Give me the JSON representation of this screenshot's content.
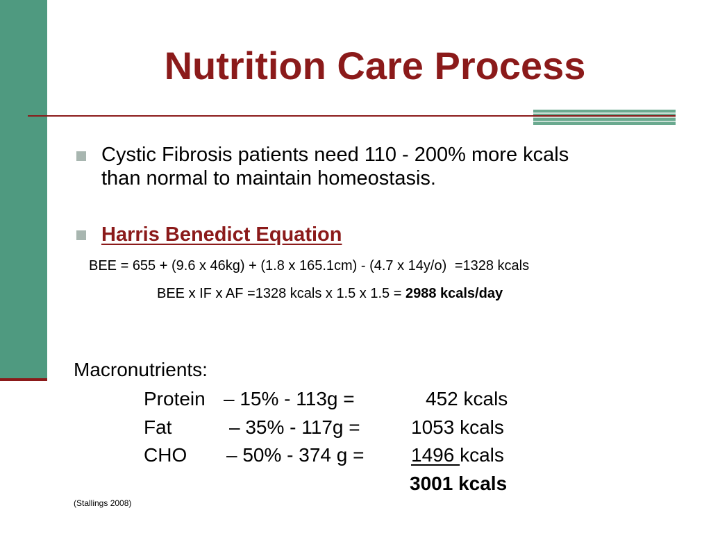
{
  "title": "Nutrition Care Process",
  "bullets": {
    "b1_line1": "Cystic Fibrosis patients need 110 - 200% more kcals",
    "b1_line2": "than normal to maintain homeostasis.",
    "b2": "Harris Benedict Equation"
  },
  "equations": {
    "bee": "BEE = 655 + (9.6 x 46kg) + (1.8 x 165.1cm) - (4.7 x 14y/o)",
    "bee_result": "=1328 kcals",
    "total_prefix": "BEE x IF x AF =1328 kcals x 1.5 x 1.5 = ",
    "total_value": "2988 kcals/day"
  },
  "macronutrients": {
    "heading": "Macronutrients:",
    "rows": [
      {
        "name": "Protein",
        "detail": "– 15% - 113g =",
        "kcals_num": "452",
        "kcals_unit": " kcals"
      },
      {
        "name": "Fat",
        "detail": "– 35% - 117g =",
        "kcals_num": "1053",
        "kcals_unit": " kcals"
      },
      {
        "name": "CHO",
        "detail": "– 50% - 374 g =",
        "kcals_num": "1496 ",
        "kcals_unit": "kcals"
      }
    ],
    "total": "3001 kcals"
  },
  "citation": "(Stallings 2008)",
  "colors": {
    "accent": "#8b1a1a",
    "sidebar": "#4f9a80",
    "bullet": "#a8b6b0"
  }
}
